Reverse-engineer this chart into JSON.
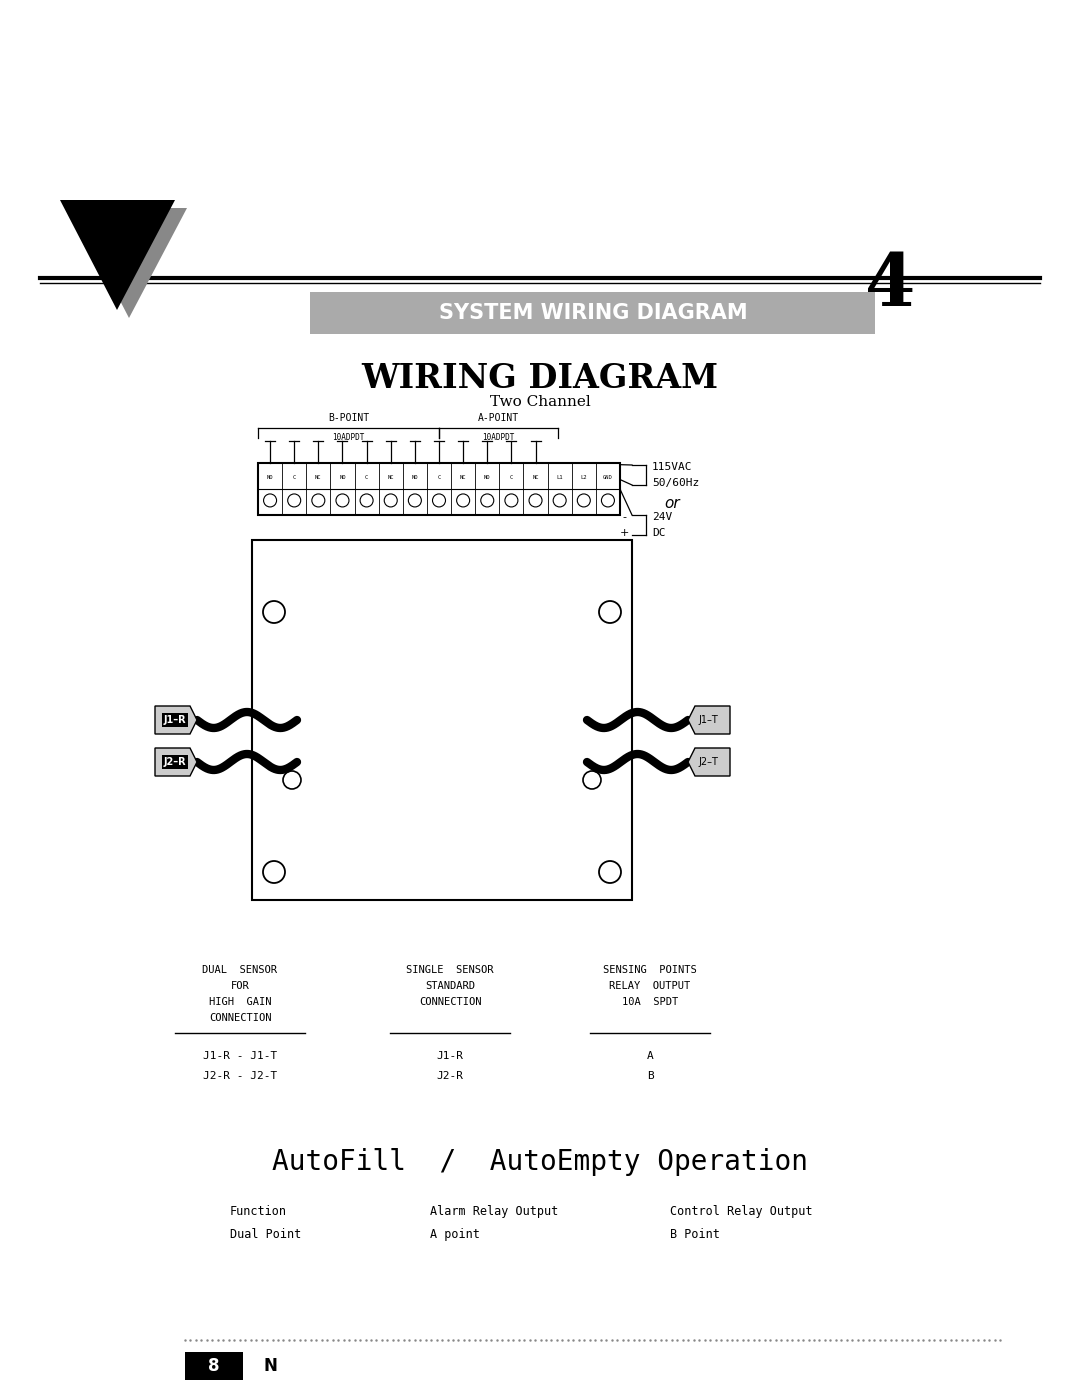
{
  "bg_color": "#ffffff",
  "page_width": 10.8,
  "page_height": 13.97,
  "section_title": "SYSTEM WIRING DIAGRAM",
  "section_number": "4",
  "wiring_title": "WIRING DIAGRAM",
  "wiring_subtitle": "Two Channel",
  "footer_page": "8",
  "footer_letter": "N",
  "autofill_title": "AutoFill  /  AutoEmpty Operation",
  "col1_header_lines": [
    "DUAL  SENSOR",
    "FOR",
    "HIGH  GAIN",
    "CONNECTION"
  ],
  "col2_header_lines": [
    "SINGLE  SENSOR",
    "STANDARD",
    "CONNECTION"
  ],
  "col3_header_lines": [
    "SENSING  POINTS",
    "RELAY  OUTPUT",
    "10A  SPDT"
  ],
  "col1_r1": "J1-R - J1-T",
  "col1_r2": "J2-R - J2-T",
  "col2_r1": "J1-R",
  "col2_r2": "J2-R",
  "col3_r1": "A",
  "col3_r2": "B",
  "func_label": "Function",
  "func_val": "Dual Point",
  "alarm_label": "Alarm Relay Output",
  "alarm_val": "A point",
  "control_label": "Control Relay Output",
  "control_val": "B Point",
  "terminals": [
    "NO",
    "C",
    "NC",
    "NO",
    "C",
    "NC",
    "NO",
    "C",
    "NC",
    "NO",
    "C",
    "NC",
    "L1",
    "L2",
    "GND"
  ],
  "b_point_label": "B-POINT",
  "a_point_label": "A-POINT",
  "label_10adpdt": "10ADPDT",
  "v115_line1": "115VAC",
  "v115_line2": "50/60Hz",
  "or_text": "or",
  "v24_line1": "24V",
  "v24_line2": "DC"
}
